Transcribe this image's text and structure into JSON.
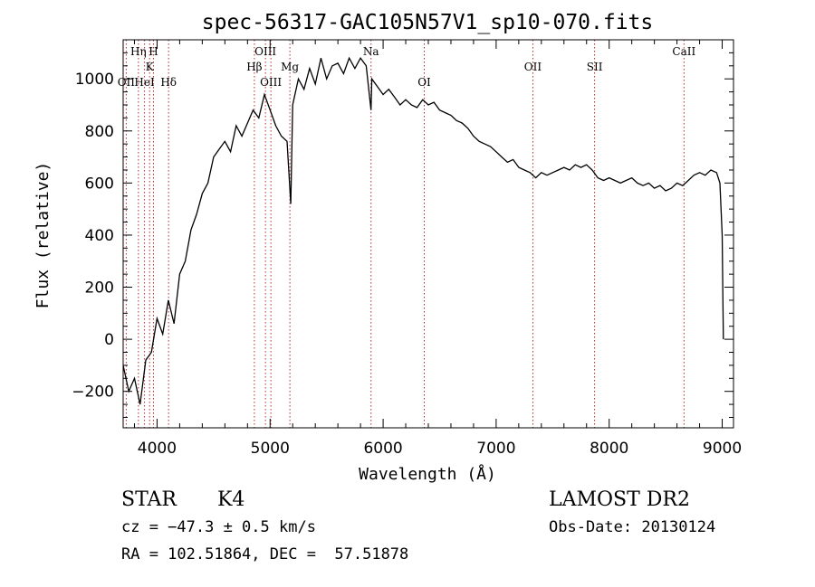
{
  "chart_data": {
    "type": "line",
    "title": "spec-56317-GAC105N57V1_sp10-070.fits",
    "xlabel": "Wavelength (Å)",
    "ylabel": "Flux (relative)",
    "xlim": [
      3700,
      9100
    ],
    "ylim": [
      -340,
      1150
    ],
    "xticks": [
      4000,
      5000,
      6000,
      7000,
      8000,
      9000
    ],
    "yticks": [
      -200,
      0,
      200,
      400,
      600,
      800,
      1000
    ],
    "grid": false,
    "series": [
      {
        "x": [
          3700,
          3750,
          3800,
          3850,
          3900,
          3950,
          4000,
          4050,
          4100,
          4150,
          4200,
          4250,
          4300,
          4350,
          4400,
          4450,
          4500,
          4550,
          4600,
          4650,
          4700,
          4750,
          4800,
          4850,
          4900,
          4950,
          5000,
          5050,
          5100,
          5150,
          5183,
          5200,
          5250,
          5300,
          5350,
          5400,
          5450,
          5500,
          5550,
          5600,
          5650,
          5700,
          5750,
          5800,
          5850,
          5893,
          5900,
          5950,
          6000,
          6050,
          6100,
          6150,
          6200,
          6250,
          6300,
          6350,
          6400,
          6450,
          6500,
          6550,
          6600,
          6650,
          6700,
          6750,
          6800,
          6850,
          6900,
          6950,
          7000,
          7050,
          7100,
          7150,
          7200,
          7250,
          7300,
          7350,
          7400,
          7450,
          7500,
          7550,
          7600,
          7650,
          7700,
          7750,
          7800,
          7850,
          7900,
          7950,
          8000,
          8050,
          8100,
          8150,
          8200,
          8250,
          8300,
          8350,
          8400,
          8450,
          8500,
          8550,
          8600,
          8650,
          8700,
          8750,
          8800,
          8850,
          8900,
          8950,
          8980,
          9000,
          9010
        ],
        "y": [
          -100,
          -200,
          -150,
          -250,
          -80,
          -50,
          80,
          20,
          150,
          60,
          250,
          300,
          420,
          480,
          560,
          600,
          700,
          730,
          760,
          720,
          820,
          780,
          830,
          880,
          850,
          940,
          880,
          820,
          780,
          760,
          520,
          900,
          1000,
          960,
          1040,
          980,
          1080,
          1000,
          1050,
          1060,
          1020,
          1080,
          1040,
          1080,
          1050,
          880,
          1000,
          970,
          940,
          960,
          930,
          900,
          920,
          900,
          890,
          920,
          900,
          910,
          880,
          870,
          860,
          840,
          830,
          810,
          780,
          760,
          750,
          740,
          720,
          700,
          680,
          690,
          660,
          650,
          640,
          620,
          640,
          630,
          640,
          650,
          660,
          650,
          670,
          660,
          670,
          650,
          620,
          610,
          620,
          610,
          600,
          610,
          620,
          600,
          590,
          600,
          580,
          590,
          570,
          580,
          600,
          590,
          610,
          630,
          640,
          630,
          650,
          640,
          600,
          400,
          0
        ]
      }
    ],
    "lines": [
      {
        "label": "Hη",
        "x": 3835,
        "row": 1
      },
      {
        "label": "H",
        "x": 3968,
        "row": 1
      },
      {
        "label": "OII",
        "x": 3727,
        "row": 3
      },
      {
        "label": "HeI",
        "x": 3889,
        "row": 3
      },
      {
        "label": "K",
        "x": 3934,
        "row": 2
      },
      {
        "label": "Hδ",
        "x": 4102,
        "row": 3
      },
      {
        "label": "OIII",
        "x": 4959,
        "row": 1
      },
      {
        "label": "Hβ",
        "x": 4861,
        "row": 2
      },
      {
        "label": "OIII",
        "x": 5007,
        "row": 3
      },
      {
        "label": "Mg",
        "x": 5175,
        "row": 2
      },
      {
        "label": "Na",
        "x": 5893,
        "row": 1
      },
      {
        "label": "OI",
        "x": 6364,
        "row": 3
      },
      {
        "label": "OII",
        "x": 7325,
        "row": 2
      },
      {
        "label": "SII",
        "x": 7871,
        "row": 2
      },
      {
        "label": "CaII",
        "x": 8662,
        "row": 1
      }
    ]
  },
  "footer": {
    "object_class": "STAR",
    "subclass": "K4",
    "survey": "LAMOST DR2",
    "cz": "cz = −47.3 ± 0.5 km/s",
    "obs_date": "Obs-Date: 20130124",
    "radec": "RA = 102.51864, DEC =  57.51878"
  }
}
